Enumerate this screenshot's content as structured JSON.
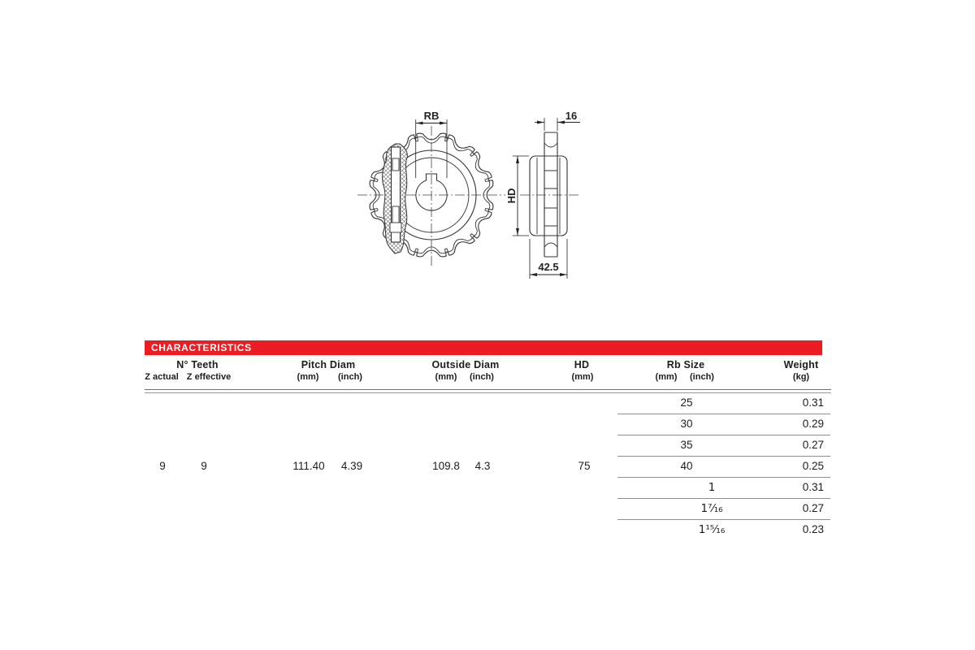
{
  "drawing": {
    "rb_label": "RB",
    "tooth_width_label": "16",
    "hd_label": "HD",
    "hub_width_label": "42.5"
  },
  "colors": {
    "accent_red": "#ec1c23",
    "line": "#333333"
  },
  "table": {
    "title": "CHARACTERISTICS",
    "columns": {
      "teeth": {
        "label": "N° Teeth",
        "sub1": "Z actual",
        "sub2": "Z effective"
      },
      "pitch": {
        "label": "Pitch Diam",
        "sub1": "(mm)",
        "sub2": "(inch)"
      },
      "outside": {
        "label": "Outside Diam",
        "sub1": "(mm)",
        "sub2": "(inch)"
      },
      "hd": {
        "label": "HD",
        "sub1": "(mm)"
      },
      "rb": {
        "label": "Rb Size",
        "sub1": "(mm)",
        "sub2": "(inch)"
      },
      "weight": {
        "label": "Weight",
        "sub1": "(kg)"
      }
    },
    "main_row": {
      "z_actual": "9",
      "z_effective": "9",
      "pitch_mm": "111.40",
      "pitch_inch": "4.39",
      "outside_mm": "109.8",
      "outside_inch": "4.3",
      "hd_mm": "75"
    },
    "rb_rows": [
      {
        "mm": "25",
        "inch": "",
        "weight": "0.31"
      },
      {
        "mm": "30",
        "inch": "",
        "weight": "0.29"
      },
      {
        "mm": "35",
        "inch": "",
        "weight": "0.27"
      },
      {
        "mm": "40",
        "inch": "",
        "weight": "0.25"
      },
      {
        "mm": "",
        "inch": "1",
        "weight": "0.31"
      },
      {
        "mm": "",
        "inch": "1⁷⁄₁₆",
        "weight": "0.27"
      },
      {
        "mm": "",
        "inch": "1¹⁵⁄₁₆",
        "weight": "0.23"
      }
    ]
  }
}
